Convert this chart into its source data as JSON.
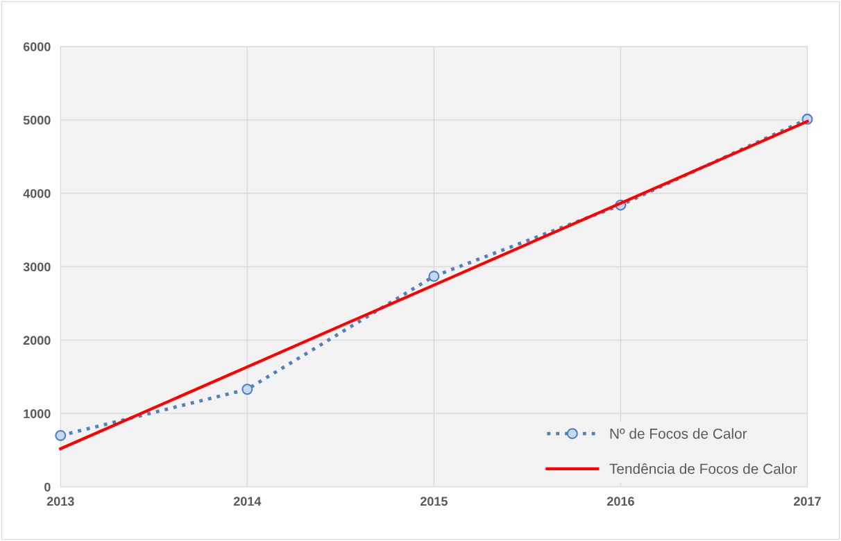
{
  "chart_data": {
    "type": "line",
    "x": [
      2013,
      2014,
      2015,
      2016,
      2017
    ],
    "series": [
      {
        "name": "Nº de Focos de Calor",
        "color": "#4f81bd",
        "values": [
          700,
          1330,
          2870,
          3840,
          5010
        ],
        "marker": "circle",
        "line_style": "dotted"
      },
      {
        "name": "Tendência de Focos de Calor",
        "color": "#ff0000",
        "x": [
          2013,
          2017
        ],
        "values": [
          520,
          4980
        ],
        "marker": "none",
        "line_style": "solid"
      }
    ],
    "xlim": [
      2013,
      2017
    ],
    "xticks": [
      2013,
      2014,
      2015,
      2016,
      2017
    ],
    "ylim": [
      0,
      6000
    ],
    "yticks": [
      0,
      1000,
      2000,
      3000,
      4000,
      5000,
      6000
    ],
    "grid": true,
    "legend": "bottom right"
  }
}
